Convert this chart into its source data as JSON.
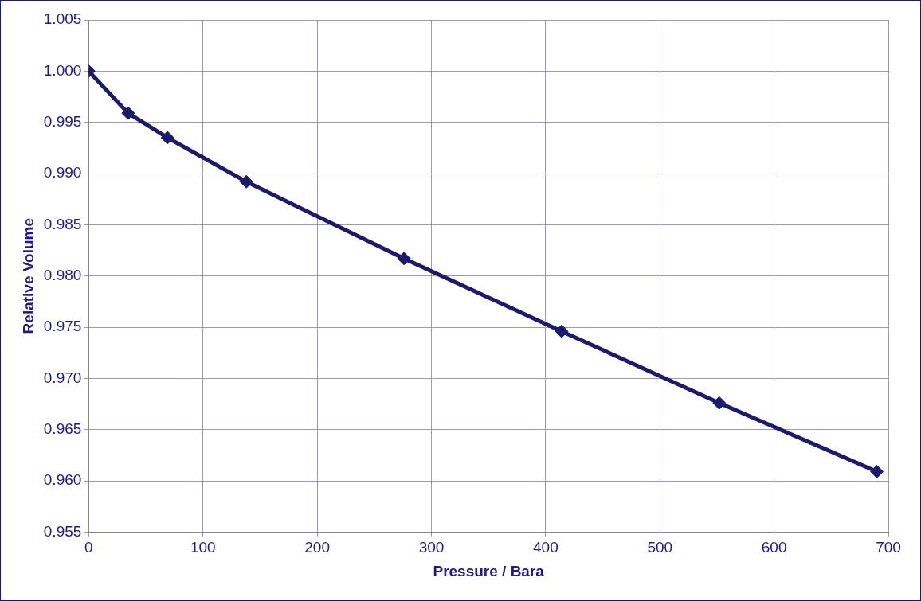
{
  "chart_data": {
    "type": "line",
    "xlabel": "Pressure / Bara",
    "ylabel": "Relative Volume",
    "x": [
      0,
      34.5,
      69,
      138,
      276,
      414,
      552,
      690
    ],
    "series": [
      {
        "color": "#1a1a6e",
        "values": [
          1.0,
          0.9959,
          0.9935,
          0.9892,
          0.9817,
          0.9746,
          0.9676,
          0.9609
        ]
      }
    ],
    "xlim": [
      0,
      700
    ],
    "xticks": [
      0,
      100,
      200,
      300,
      400,
      500,
      600,
      700
    ],
    "ylim": [
      0.955,
      1.005
    ],
    "yticks": [
      {
        "value": 0.955,
        "label": "0.955"
      },
      {
        "value": 0.96,
        "label": "0.960"
      },
      {
        "value": 0.965,
        "label": "0.965"
      },
      {
        "value": 0.97,
        "label": "0.970"
      },
      {
        "value": 0.975,
        "label": "0.975"
      },
      {
        "value": 0.98,
        "label": "0.980"
      },
      {
        "value": 0.985,
        "label": "0.985"
      },
      {
        "value": 0.99,
        "label": "0.990"
      },
      {
        "value": 0.995,
        "label": "0.995"
      },
      {
        "value": 1.0,
        "label": "1.000"
      },
      {
        "value": 1.005,
        "label": "1.005"
      }
    ],
    "grid": true,
    "legend": false,
    "marker": "diamond",
    "line_style": "solid"
  }
}
